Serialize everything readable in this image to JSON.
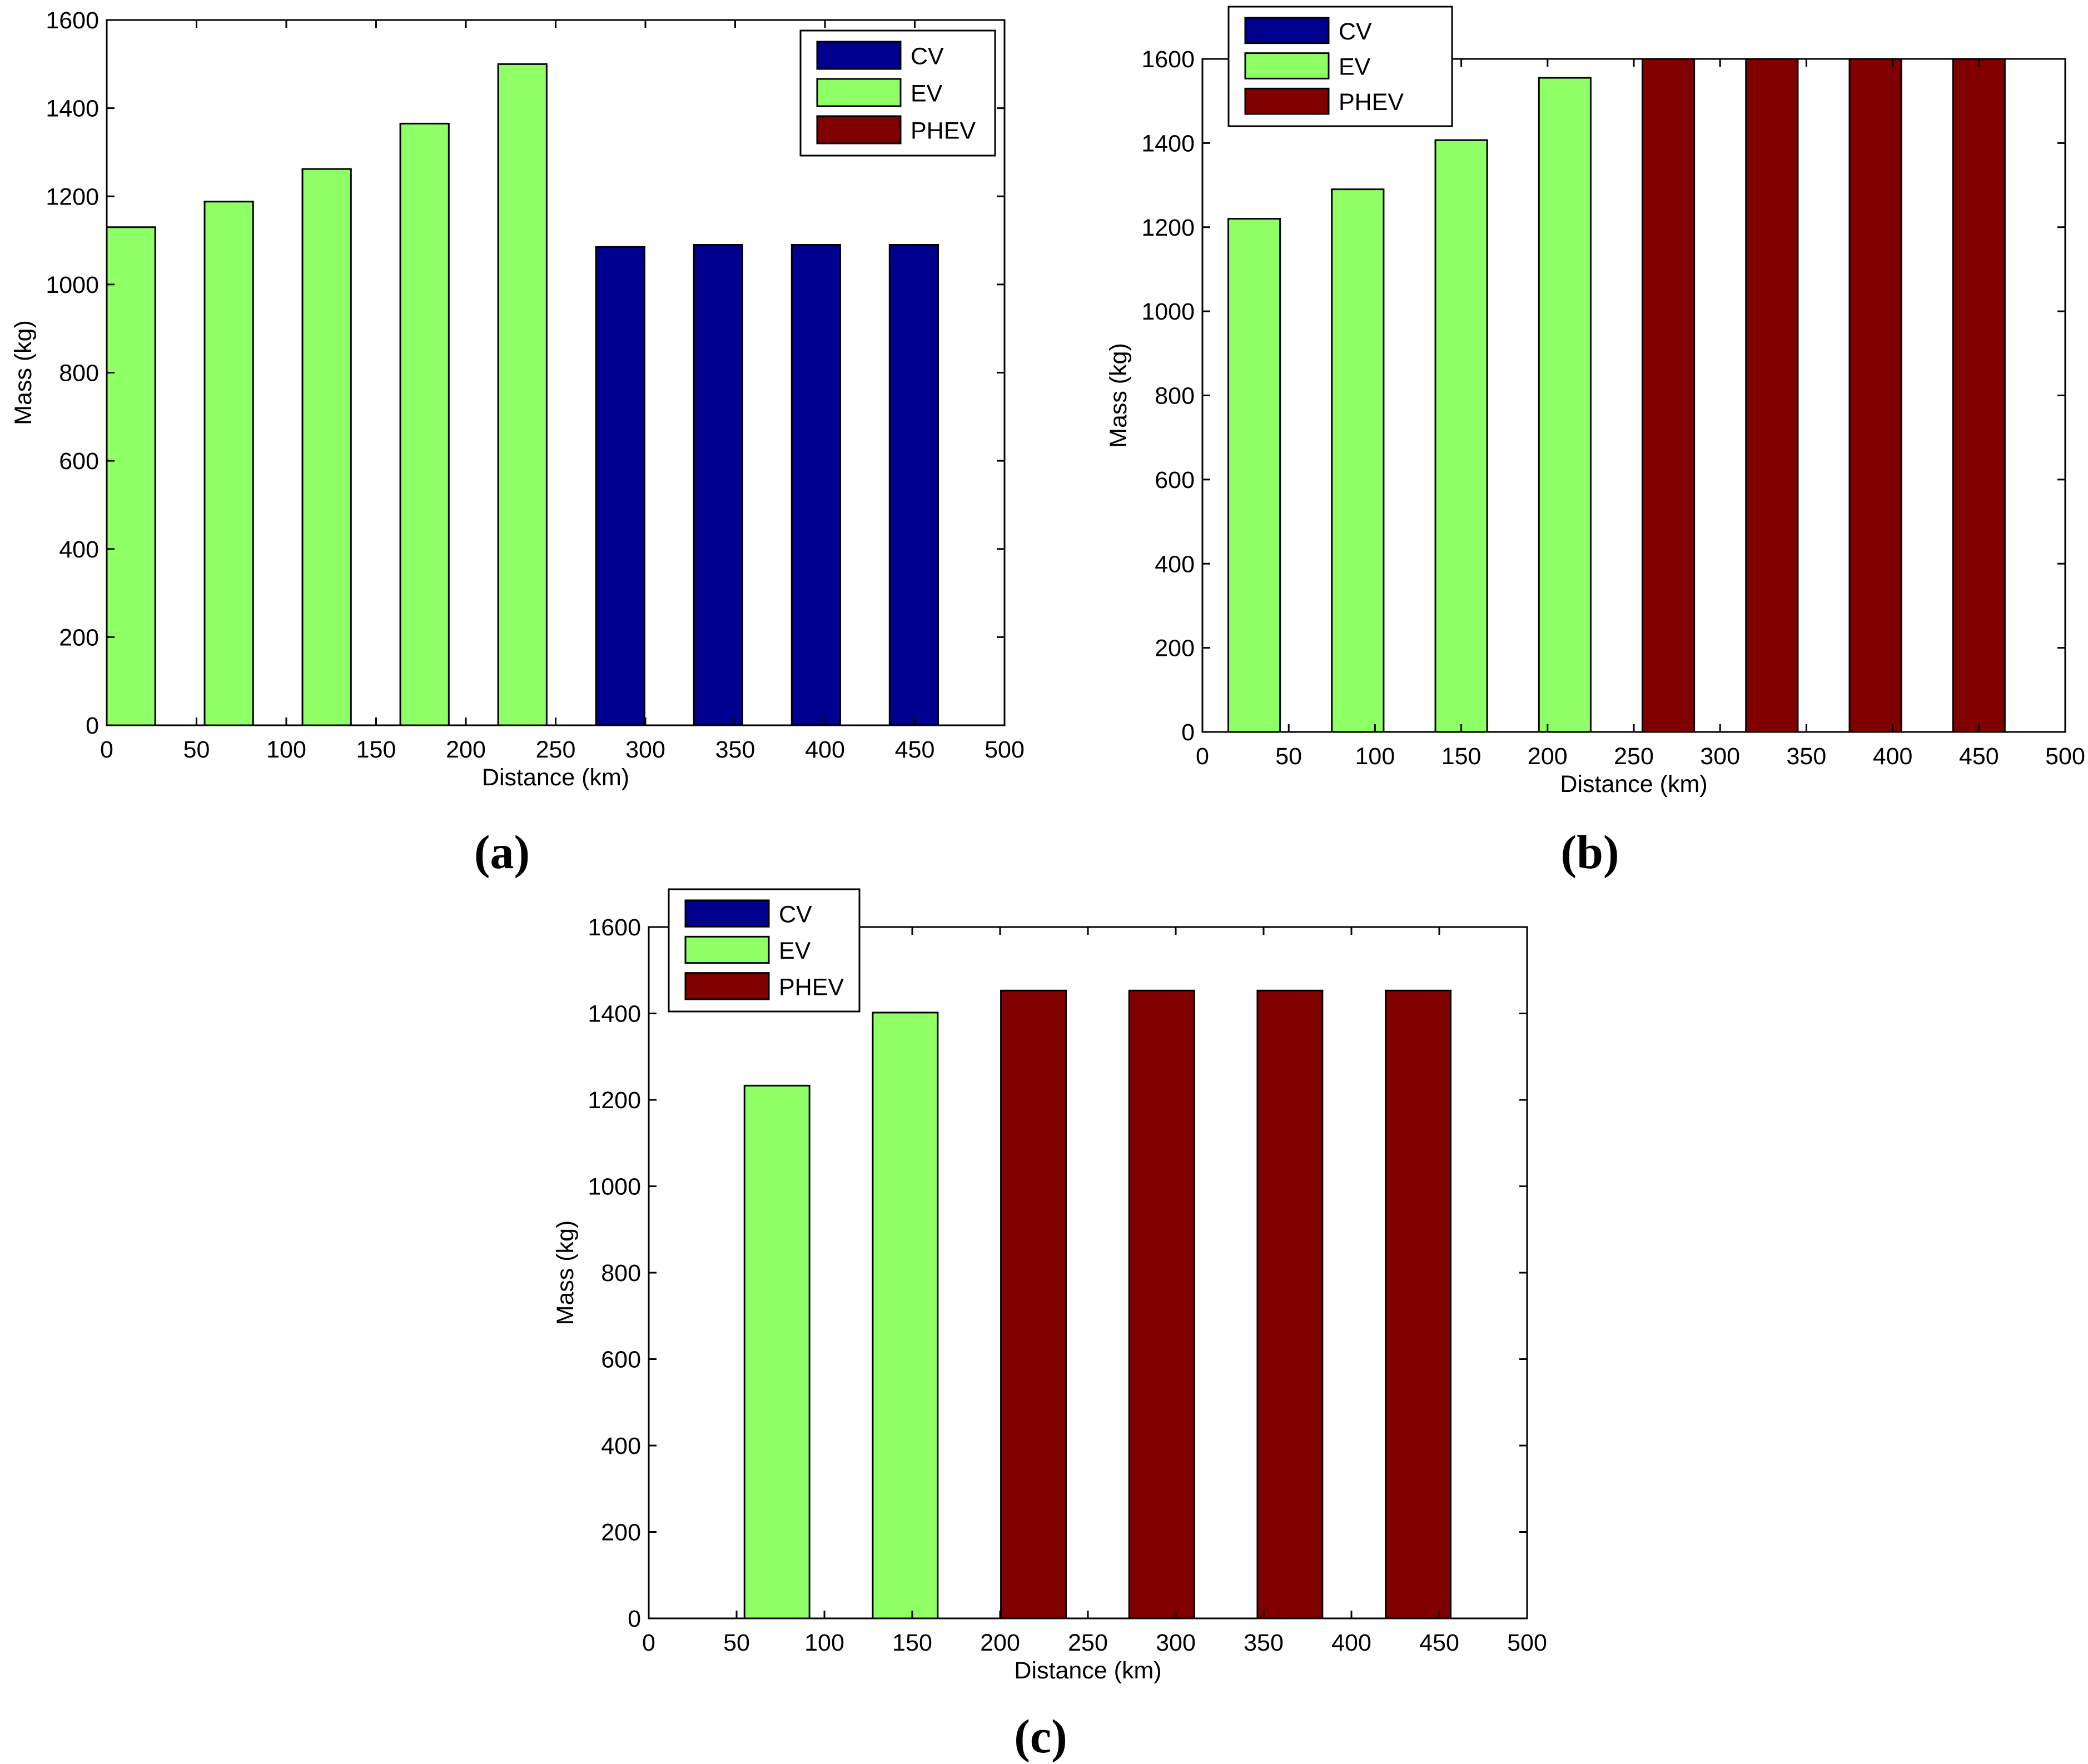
{
  "colors": {
    "CV": "#00008f",
    "EV": "#8fff66",
    "PHEV": "#800000"
  },
  "chart_data": [
    {
      "type": "bar",
      "panel": "(a)",
      "xlabel": "Distance (km)",
      "ylabel": "Mass (kg)",
      "xlim": [
        0,
        500
      ],
      "ylim": [
        0,
        1600
      ],
      "xticks": [
        "0",
        "50",
        "100",
        "150",
        "200",
        "250",
        "300",
        "350",
        "400",
        "450",
        "500"
      ],
      "yticks": [
        "0",
        "200",
        "400",
        "600",
        "800",
        "1000",
        "1200",
        "1400",
        "1600"
      ],
      "legend": [
        "CV",
        "EV",
        "PHEV"
      ],
      "legend_position": "top-right",
      "bar_width_km": 27,
      "bars": [
        {
          "x": 13.5,
          "value": 1130,
          "series": "EV"
        },
        {
          "x": 68,
          "value": 1188,
          "series": "EV"
        },
        {
          "x": 122.5,
          "value": 1262,
          "series": "EV"
        },
        {
          "x": 177,
          "value": 1365,
          "series": "EV"
        },
        {
          "x": 231.5,
          "value": 1500,
          "series": "EV"
        },
        {
          "x": 286,
          "value": 1085,
          "series": "CV"
        },
        {
          "x": 340.5,
          "value": 1090,
          "series": "CV"
        },
        {
          "x": 395,
          "value": 1090,
          "series": "CV"
        },
        {
          "x": 449.5,
          "value": 1090,
          "series": "CV"
        }
      ]
    },
    {
      "type": "bar",
      "panel": "(b)",
      "xlabel": "Distance (km)",
      "ylabel": "Mass (kg)",
      "xlim": [
        0,
        500
      ],
      "ylim": [
        0,
        1600
      ],
      "xticks": [
        "0",
        "50",
        "100",
        "150",
        "200",
        "250",
        "300",
        "350",
        "400",
        "450",
        "500"
      ],
      "yticks": [
        "0",
        "200",
        "400",
        "600",
        "800",
        "1000",
        "1200",
        "1400",
        "1600"
      ],
      "legend": [
        "CV",
        "EV",
        "PHEV"
      ],
      "legend_position": "top-left",
      "bar_width_km": 30,
      "bars": [
        {
          "x": 30,
          "value": 1220,
          "series": "EV"
        },
        {
          "x": 90,
          "value": 1290,
          "series": "EV"
        },
        {
          "x": 150,
          "value": 1407,
          "series": "EV"
        },
        {
          "x": 210,
          "value": 1555,
          "series": "EV"
        },
        {
          "x": 270,
          "value": 1600,
          "series": "PHEV"
        },
        {
          "x": 330,
          "value": 1600,
          "series": "PHEV"
        },
        {
          "x": 390,
          "value": 1600,
          "series": "PHEV"
        },
        {
          "x": 450,
          "value": 1600,
          "series": "PHEV"
        }
      ]
    },
    {
      "type": "bar",
      "panel": "(c)",
      "xlabel": "Distance (km)",
      "ylabel": "Mass (kg)",
      "xlim": [
        0,
        500
      ],
      "ylim": [
        0,
        1600
      ],
      "xticks": [
        "0",
        "50",
        "100",
        "150",
        "200",
        "250",
        "300",
        "350",
        "400",
        "450",
        "500"
      ],
      "yticks": [
        "0",
        "200",
        "400",
        "600",
        "800",
        "1000",
        "1200",
        "1400",
        "1600"
      ],
      "legend": [
        "CV",
        "EV",
        "PHEV"
      ],
      "legend_position": "top-left",
      "bar_width_km": 37,
      "bars": [
        {
          "x": 73,
          "value": 1233,
          "series": "EV"
        },
        {
          "x": 146,
          "value": 1402,
          "series": "EV"
        },
        {
          "x": 219,
          "value": 1453,
          "series": "PHEV"
        },
        {
          "x": 292,
          "value": 1453,
          "series": "PHEV"
        },
        {
          "x": 365,
          "value": 1453,
          "series": "PHEV"
        },
        {
          "x": 438,
          "value": 1453,
          "series": "PHEV"
        }
      ]
    }
  ]
}
